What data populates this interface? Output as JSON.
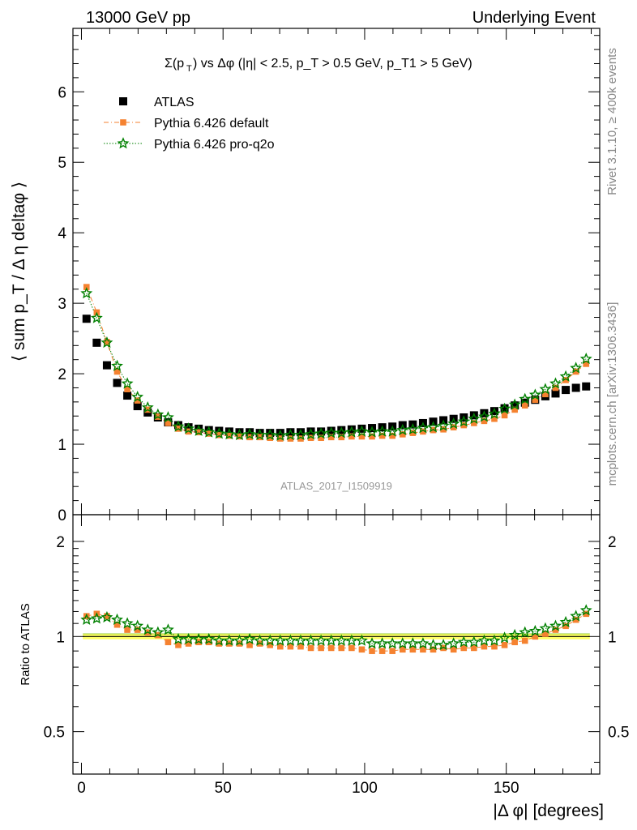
{
  "header": {
    "left": "13000 GeV pp",
    "right": "Underlying Event"
  },
  "side_labels": {
    "rivet": "Rivet 3.1.10, ≥ 400k events",
    "mcplots": "mcplots.cern.ch [arXiv:1306.3436]"
  },
  "watermark": "ATLAS_2017_I1509919",
  "colors": {
    "data": "#000000",
    "default": "#f58230",
    "proq2o": "#008000",
    "band": "#ffff66",
    "band_line": "#99cc33"
  },
  "chart_data": [
    {
      "type": "scatter",
      "title": "Σ(p_T) vs Δφ (|η| < 2.5, p_T > 0.5 GeV, p_T1 > 5 GeV)",
      "xlabel": "",
      "ylabel": "⟨ sum p_T / Δ η deltaφ ⟩",
      "xlim": [
        -3,
        183
      ],
      "ylim": [
        0,
        6.9
      ],
      "yticks": [
        "0",
        "1",
        "2",
        "3",
        "4",
        "5",
        "6"
      ],
      "x": [
        1.8,
        5.4,
        9,
        12.6,
        16.2,
        19.8,
        23.4,
        27,
        30.6,
        34.2,
        37.8,
        41.4,
        45,
        48.6,
        52.2,
        55.8,
        59.4,
        63,
        66.6,
        70.2,
        73.8,
        77.4,
        81,
        84.6,
        88.2,
        91.8,
        95.4,
        99,
        102.6,
        106.2,
        109.8,
        113.4,
        117,
        120.6,
        124.2,
        127.8,
        131.4,
        135,
        138.6,
        142.2,
        145.8,
        149.4,
        153,
        156.6,
        160.2,
        163.8,
        167.4,
        171,
        174.6,
        178.2
      ],
      "series": [
        {
          "name": "ATLAS",
          "marker": "square",
          "values": [
            2.78,
            2.44,
            2.12,
            1.87,
            1.69,
            1.54,
            1.45,
            1.38,
            1.31,
            1.27,
            1.24,
            1.22,
            1.2,
            1.19,
            1.18,
            1.17,
            1.17,
            1.16,
            1.16,
            1.16,
            1.17,
            1.17,
            1.18,
            1.18,
            1.19,
            1.2,
            1.21,
            1.22,
            1.23,
            1.24,
            1.25,
            1.27,
            1.28,
            1.3,
            1.32,
            1.34,
            1.36,
            1.38,
            1.41,
            1.44,
            1.47,
            1.51,
            1.55,
            1.59,
            1.63,
            1.68,
            1.72,
            1.77,
            1.8,
            1.82
          ]
        },
        {
          "name": "Pythia 6.426 default",
          "marker": "square",
          "values": [
            3.23,
            2.87,
            2.45,
            2.03,
            1.78,
            1.62,
            1.49,
            1.39,
            1.3,
            1.22,
            1.18,
            1.17,
            1.15,
            1.13,
            1.12,
            1.11,
            1.1,
            1.1,
            1.09,
            1.08,
            1.08,
            1.08,
            1.09,
            1.09,
            1.1,
            1.1,
            1.11,
            1.11,
            1.11,
            1.12,
            1.12,
            1.14,
            1.16,
            1.18,
            1.2,
            1.21,
            1.24,
            1.27,
            1.3,
            1.33,
            1.36,
            1.41,
            1.49,
            1.55,
            1.63,
            1.71,
            1.8,
            1.91,
            2.03,
            2.14
          ]
        },
        {
          "name": "Pythia 6.426 pro-q2o",
          "marker": "star",
          "values": [
            3.14,
            2.79,
            2.44,
            2.11,
            1.86,
            1.67,
            1.52,
            1.42,
            1.38,
            1.25,
            1.22,
            1.19,
            1.17,
            1.15,
            1.14,
            1.13,
            1.14,
            1.13,
            1.13,
            1.12,
            1.13,
            1.13,
            1.14,
            1.15,
            1.16,
            1.16,
            1.17,
            1.18,
            1.17,
            1.18,
            1.18,
            1.2,
            1.21,
            1.23,
            1.24,
            1.26,
            1.29,
            1.32,
            1.36,
            1.39,
            1.43,
            1.5,
            1.56,
            1.64,
            1.7,
            1.78,
            1.86,
            1.96,
            2.08,
            2.21
          ]
        }
      ]
    },
    {
      "type": "scatter",
      "xlabel": "|Δ φ| [degrees]",
      "ylabel": "Ratio to ATLAS",
      "xlim": [
        -3,
        183
      ],
      "ylim": [
        0.367,
        2.43
      ],
      "log_y": true,
      "xticks": [
        "0",
        "50",
        "100",
        "150"
      ],
      "yticks": [
        "0.5",
        "1",
        "2"
      ],
      "band": [
        0.98,
        1.02
      ],
      "x": [
        1.8,
        5.4,
        9,
        12.6,
        16.2,
        19.8,
        23.4,
        27,
        30.6,
        34.2,
        37.8,
        41.4,
        45,
        48.6,
        52.2,
        55.8,
        59.4,
        63,
        66.6,
        70.2,
        73.8,
        77.4,
        81,
        84.6,
        88.2,
        91.8,
        95.4,
        99,
        102.6,
        106.2,
        109.8,
        113.4,
        117,
        120.6,
        124.2,
        127.8,
        131.4,
        135,
        138.6,
        142.2,
        145.8,
        149.4,
        153,
        156.6,
        160.2,
        163.8,
        167.4,
        171,
        174.6,
        178.2
      ],
      "series": [
        {
          "name": "Pythia 6.426 default",
          "marker": "square",
          "values": [
            1.16,
            1.18,
            1.16,
            1.09,
            1.05,
            1.05,
            1.03,
            1.01,
            0.96,
            0.94,
            0.95,
            0.96,
            0.96,
            0.95,
            0.95,
            0.95,
            0.94,
            0.95,
            0.94,
            0.93,
            0.93,
            0.93,
            0.92,
            0.92,
            0.92,
            0.92,
            0.92,
            0.91,
            0.9,
            0.9,
            0.9,
            0.91,
            0.91,
            0.91,
            0.91,
            0.92,
            0.91,
            0.92,
            0.92,
            0.93,
            0.93,
            0.94,
            0.96,
            0.97,
            1.0,
            1.02,
            1.05,
            1.08,
            1.13,
            1.18
          ]
        },
        {
          "name": "Pythia 6.426 pro-q2o",
          "marker": "star",
          "values": [
            1.13,
            1.14,
            1.15,
            1.13,
            1.1,
            1.08,
            1.05,
            1.03,
            1.05,
            0.98,
            0.98,
            0.98,
            0.98,
            0.97,
            0.97,
            0.97,
            0.98,
            0.97,
            0.97,
            0.97,
            0.97,
            0.97,
            0.97,
            0.97,
            0.97,
            0.97,
            0.97,
            0.97,
            0.95,
            0.95,
            0.95,
            0.95,
            0.95,
            0.95,
            0.94,
            0.94,
            0.95,
            0.96,
            0.96,
            0.97,
            0.97,
            0.99,
            1.01,
            1.03,
            1.04,
            1.06,
            1.08,
            1.11,
            1.16,
            1.21
          ]
        }
      ]
    }
  ]
}
